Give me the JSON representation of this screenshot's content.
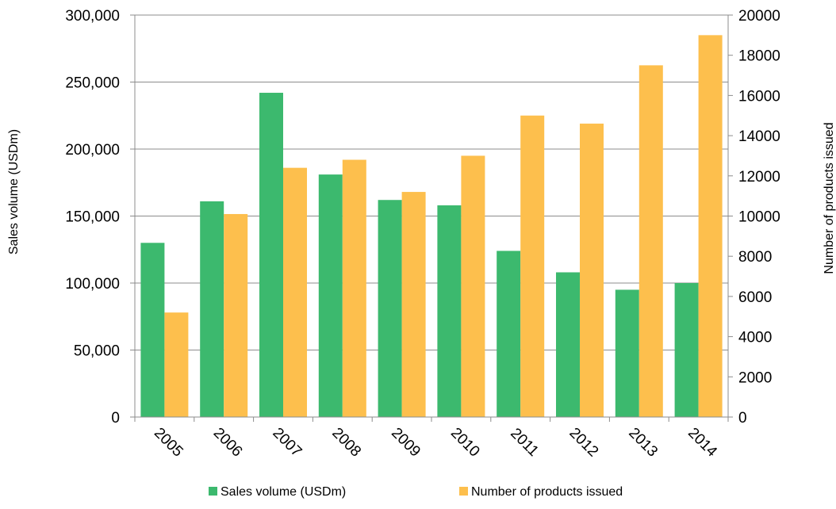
{
  "chart_data": {
    "type": "bar",
    "categories": [
      "2005",
      "2006",
      "2007",
      "2008",
      "2009",
      "2010",
      "2011",
      "2012",
      "2013",
      "2014"
    ],
    "series": [
      {
        "name": "Sales volume (USDm)",
        "axis": "left",
        "color": "#3cb96e",
        "values": [
          130000,
          161000,
          242000,
          181000,
          162000,
          158000,
          124000,
          108000,
          95000,
          100000
        ]
      },
      {
        "name": "Number of products issued",
        "axis": "right",
        "color": "#fdbf4d",
        "values": [
          5200,
          10100,
          12400,
          12800,
          11200,
          13000,
          15000,
          14600,
          17500,
          19000
        ]
      }
    ],
    "y_left": {
      "label": "Sales volume (USDm)",
      "ylim": [
        0,
        300000
      ],
      "ticks": [
        "0",
        "50,000",
        "100,000",
        "150,000",
        "200,000",
        "250,000",
        "300,000"
      ]
    },
    "y_right": {
      "label": "Number of products issued",
      "ylim": [
        0,
        20000
      ],
      "ticks": [
        "0",
        "2000",
        "4000",
        "6000",
        "8000",
        "10000",
        "12000",
        "14000",
        "16000",
        "18000",
        "20000"
      ]
    },
    "xlabel": "",
    "grid": true,
    "legend": "bottom"
  }
}
